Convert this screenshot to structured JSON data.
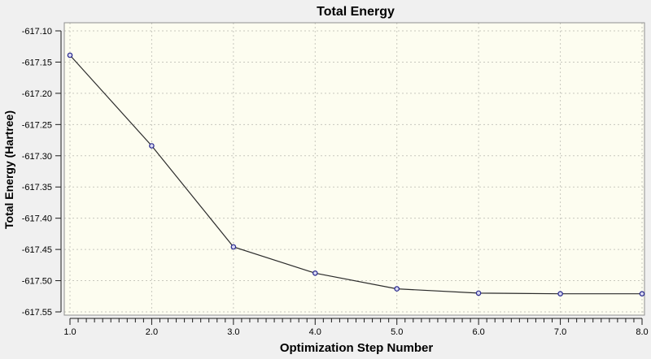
{
  "window": {
    "background_color": "#f0f0f0"
  },
  "chart_data": {
    "type": "line",
    "title": "Total Energy",
    "xlabel": "Optimization Step Number",
    "ylabel": "Total Energy (Hartree)",
    "legend": "none",
    "grid": "dashed-both-axes",
    "x": [
      1.0,
      2.0,
      3.0,
      4.0,
      5.0,
      6.0,
      7.0,
      8.0
    ],
    "y": [
      -617.139,
      -617.284,
      -617.446,
      -617.488,
      -617.513,
      -617.52,
      -617.521,
      -617.521
    ],
    "xlim": [
      1.0,
      8.0
    ],
    "ylim": [
      -617.558,
      -617.089
    ],
    "x_ticks": [
      1.0,
      2.0,
      3.0,
      4.0,
      5.0,
      6.0,
      7.0,
      8.0
    ],
    "x_tick_labels": [
      "1.0",
      "2.0",
      "3.0",
      "4.0",
      "5.0",
      "6.0",
      "7.0",
      "8.0"
    ],
    "x_minor_step": 0.1,
    "y_ticks": [
      -617.1,
      -617.15,
      -617.2,
      -617.25,
      -617.3,
      -617.35,
      -617.4,
      -617.45,
      -617.5,
      -617.55
    ],
    "y_tick_labels": [
      "-617.10",
      "-617.15",
      "-617.20",
      "-617.25",
      "-617.30",
      "-617.35",
      "-617.40",
      "-617.45",
      "-617.50",
      "-617.55"
    ],
    "colors": {
      "outer_background": "#f0f0f0",
      "plot_background": "#fdfdf0",
      "plot_border": "#8f8f8f",
      "grid": "#c8c8be",
      "axis": "#1a1a1a",
      "line": "#2b2b2b",
      "marker_stroke": "#28288e",
      "marker_fill": "#d9d9f2",
      "text": "#000000"
    }
  }
}
